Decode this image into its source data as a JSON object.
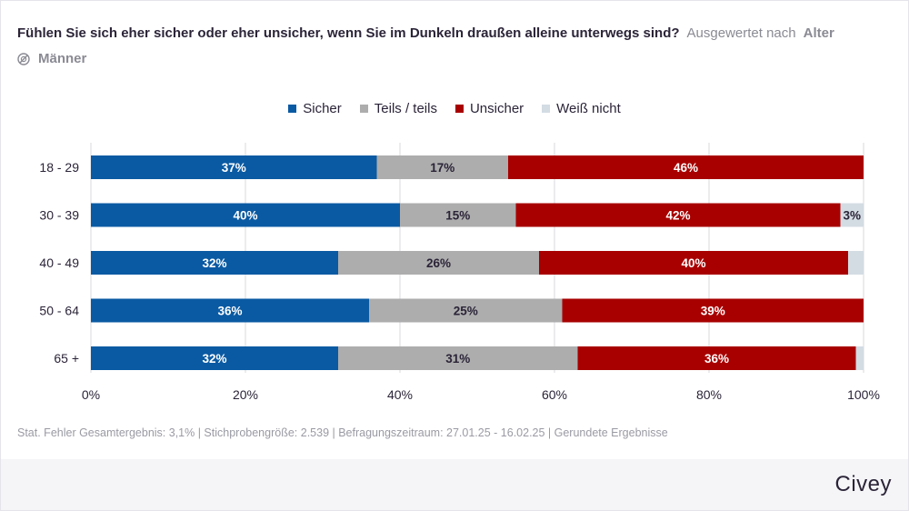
{
  "header": {
    "question": "Fühlen Sie sich eher sicher oder eher unsicher, wenn Sie im Dunkeln draußen alleine unterwegs sind?",
    "eval_label": "Ausgewertet nach",
    "eval_value": "Alter",
    "filter_label": "Männer"
  },
  "footer": {
    "note": "Stat. Fehler Gesamtergebnis: 3,1% | Stichprobengröße: 2.539 | Befragungszeitraum: 27.01.25 - 16.02.25 | Gerundete Ergebnisse",
    "brand": "Civey"
  },
  "chart_data": {
    "type": "bar",
    "orientation": "horizontal",
    "stacked": true,
    "categories": [
      "18 - 29",
      "30 - 39",
      "40 - 49",
      "50 - 64",
      "65 +"
    ],
    "series": [
      {
        "name": "Sicher",
        "color": "#0a5aa3",
        "values": [
          37,
          40,
          32,
          36,
          32
        ]
      },
      {
        "name": "Teils / teils",
        "color": "#adadad",
        "values": [
          17,
          15,
          26,
          25,
          31
        ]
      },
      {
        "name": "Unsicher",
        "color": "#a80000",
        "values": [
          46,
          42,
          40,
          39,
          36
        ]
      },
      {
        "name": "Weiß nicht",
        "color": "#d3dbe3",
        "values": [
          0,
          3,
          2,
          0,
          1
        ]
      }
    ],
    "data_labels": [
      [
        "37%",
        "17%",
        "46%",
        ""
      ],
      [
        "40%",
        "15%",
        "42%",
        "3%"
      ],
      [
        "32%",
        "26%",
        "40%",
        ""
      ],
      [
        "36%",
        "25%",
        "39%",
        ""
      ],
      [
        "32%",
        "31%",
        "36%",
        ""
      ]
    ],
    "xlim": [
      0,
      100
    ],
    "xticks": [
      "0%",
      "20%",
      "40%",
      "60%",
      "80%",
      "100%"
    ],
    "grid": true,
    "legend_position": "top-center"
  }
}
